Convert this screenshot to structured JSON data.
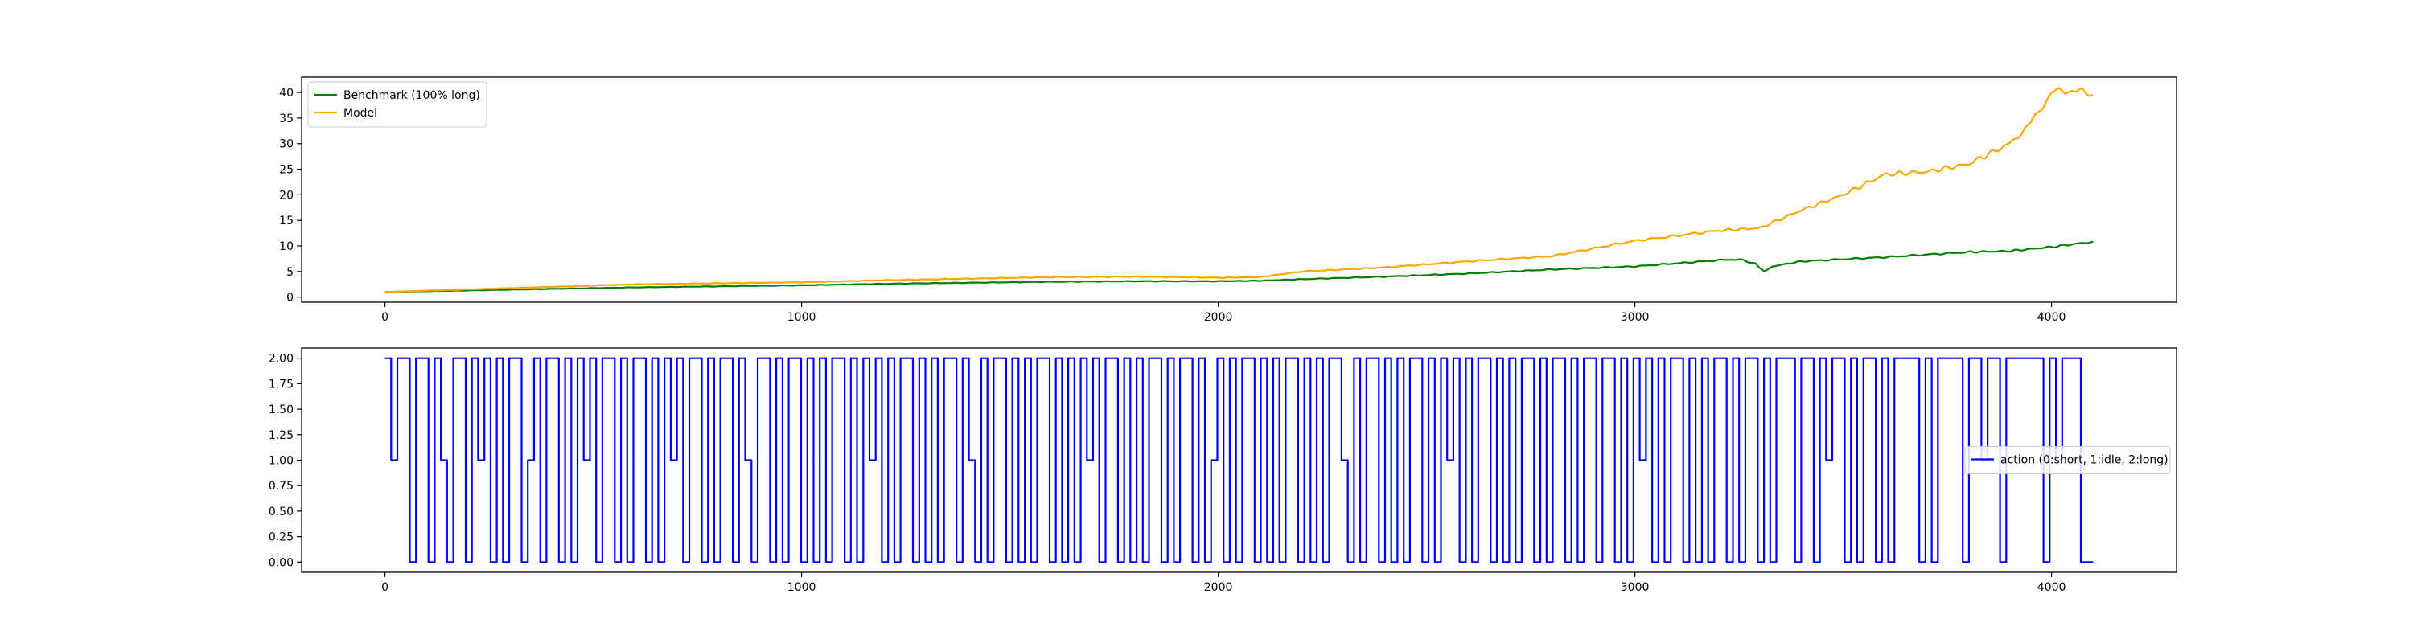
{
  "chart_data": [
    {
      "type": "line",
      "xlim": [
        -200,
        4300
      ],
      "ylim": [
        -1,
        43
      ],
      "xticks": [
        0,
        1000,
        2000,
        3000,
        4000
      ],
      "xtick_labels": [
        "0",
        "1000",
        "2000",
        "3000",
        "4000"
      ],
      "yticks": [
        0,
        5,
        10,
        15,
        20,
        25,
        30,
        35,
        40
      ],
      "ytick_labels": [
        "0",
        "5",
        "10",
        "15",
        "20",
        "25",
        "30",
        "35",
        "40"
      ],
      "grid": false,
      "legend_position": "top-left",
      "series": [
        {
          "name": "Benchmark (100% long)",
          "color": "#008000",
          "x": [
            0,
            200,
            400,
            600,
            800,
            1000,
            1200,
            1400,
            1600,
            1800,
            2000,
            2100,
            2200,
            2400,
            2600,
            2800,
            3000,
            3200,
            3250,
            3290,
            3310,
            3330,
            3400,
            3600,
            3800,
            3900,
            4000,
            4100
          ],
          "y": [
            1.0,
            1.3,
            1.6,
            1.9,
            2.1,
            2.3,
            2.6,
            2.8,
            3.0,
            3.1,
            3.1,
            3.2,
            3.5,
            4.0,
            4.6,
            5.4,
            6.0,
            7.2,
            7.4,
            6.5,
            5.0,
            6.0,
            7.0,
            7.8,
            8.8,
            9.0,
            9.8,
            10.8
          ]
        },
        {
          "name": "Model",
          "color": "#ffa500",
          "x": [
            0,
            200,
            400,
            600,
            800,
            1000,
            1200,
            1400,
            1600,
            1800,
            2000,
            2100,
            2200,
            2400,
            2600,
            2800,
            3000,
            3200,
            3300,
            3400,
            3500,
            3600,
            3700,
            3800,
            3900,
            3950,
            4000,
            4050,
            4100
          ],
          "y": [
            1.0,
            1.5,
            2.0,
            2.5,
            2.7,
            2.9,
            3.3,
            3.6,
            3.9,
            4.0,
            3.8,
            3.9,
            5.0,
            5.8,
            7.0,
            8.0,
            11.0,
            13.0,
            13.5,
            17.0,
            20.0,
            24.0,
            24.5,
            26.0,
            30.0,
            34.0,
            40.0,
            40.5,
            39.5
          ]
        }
      ]
    },
    {
      "type": "line",
      "xlim": [
        -200,
        4300
      ],
      "ylim": [
        -0.1,
        2.1
      ],
      "xticks": [
        0,
        1000,
        2000,
        3000,
        4000
      ],
      "xtick_labels": [
        "0",
        "1000",
        "2000",
        "3000",
        "4000"
      ],
      "yticks": [
        0.0,
        0.25,
        0.5,
        0.75,
        1.0,
        1.25,
        1.5,
        1.75,
        2.0
      ],
      "ytick_labels": [
        "0.00",
        "0.25",
        "0.50",
        "0.75",
        "1.00",
        "1.25",
        "1.50",
        "1.75",
        "2.00"
      ],
      "grid": false,
      "legend_position": "center-right",
      "series": [
        {
          "name": "action (0:short, 1:idle, 2:long)",
          "color": "#0000ff",
          "x_start": 0,
          "x_end": 4100,
          "values": [
            2,
            1,
            2,
            2,
            0,
            2,
            2,
            0,
            2,
            1,
            0,
            2,
            2,
            0,
            2,
            1,
            2,
            0,
            2,
            0,
            2,
            2,
            0,
            1,
            2,
            0,
            2,
            2,
            0,
            2,
            0,
            2,
            1,
            2,
            0,
            2,
            2,
            0,
            2,
            0,
            2,
            2,
            0,
            2,
            0,
            2,
            1,
            2,
            0,
            2,
            2,
            0,
            2,
            0,
            2,
            2,
            0,
            2,
            1,
            0,
            2,
            2,
            0,
            2,
            0,
            2,
            2,
            0,
            2,
            0,
            2,
            0,
            2,
            2,
            0,
            2,
            0,
            2,
            1,
            2,
            0,
            2,
            0,
            2,
            2,
            0,
            2,
            0,
            2,
            0,
            2,
            2,
            0,
            2,
            1,
            0,
            2,
            0,
            2,
            2,
            0,
            2,
            0,
            2,
            0,
            2,
            2,
            0,
            2,
            0,
            2,
            0,
            2,
            1,
            2,
            0,
            2,
            2,
            0,
            2,
            0,
            2,
            0,
            2,
            2,
            0,
            2,
            0,
            2,
            2,
            0,
            2,
            0,
            1,
            2,
            0,
            2,
            0,
            2,
            2,
            0,
            2,
            0,
            2,
            0,
            2,
            2,
            0,
            2,
            0,
            2,
            0,
            2,
            2,
            1,
            0,
            2,
            0,
            2,
            2,
            0,
            2,
            0,
            2,
            0,
            2,
            2,
            0,
            2,
            0,
            2,
            1,
            2,
            0,
            2,
            0,
            2,
            2,
            0,
            2,
            0,
            2,
            0,
            2,
            2,
            0,
            2,
            0,
            2,
            2,
            0,
            2,
            0,
            2,
            2,
            0,
            2,
            2,
            0,
            2,
            0,
            2,
            1,
            2,
            0,
            2,
            0,
            2,
            2,
            0,
            2,
            0,
            2,
            0,
            2,
            2,
            0,
            2,
            0,
            2,
            2,
            0,
            2,
            0,
            2,
            2,
            2,
            0,
            2,
            2,
            0,
            2,
            1,
            2,
            2,
            0,
            2,
            0,
            2,
            2,
            0,
            2,
            0,
            2,
            2,
            2,
            2,
            0,
            2,
            0,
            2,
            2,
            2,
            2,
            0,
            2,
            2,
            1,
            2,
            2,
            0,
            2,
            2,
            2,
            2,
            2,
            2,
            0,
            2,
            1,
            2,
            2,
            2,
            0,
            0
          ]
        }
      ]
    }
  ]
}
